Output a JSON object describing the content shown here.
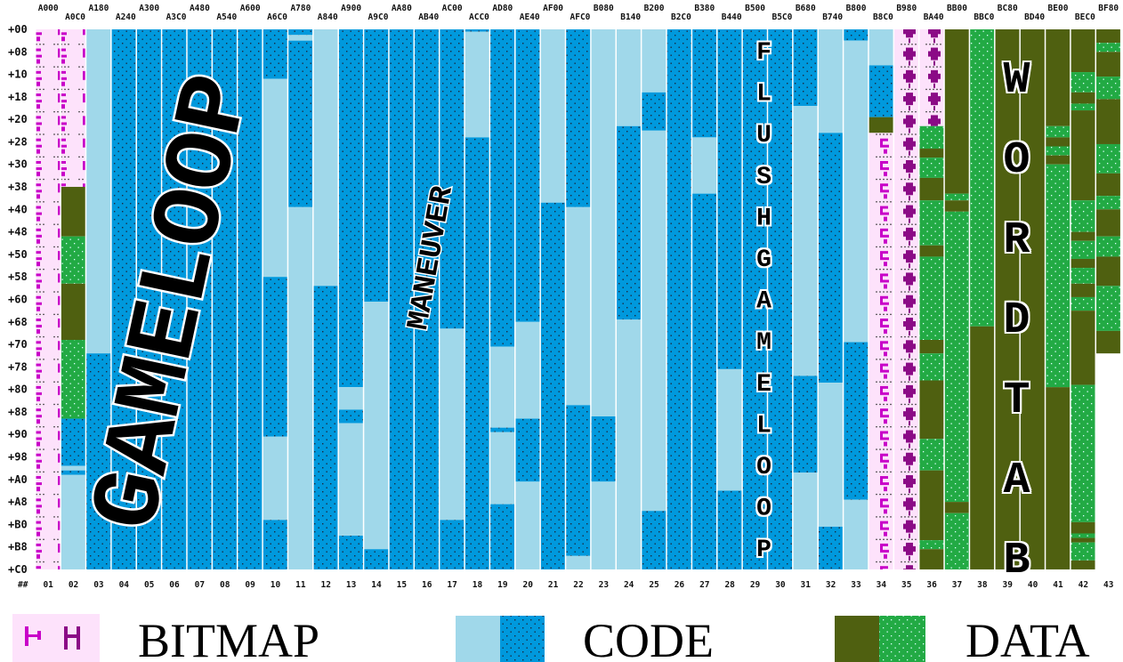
{
  "column_addresses": [
    "A000",
    "A0C0",
    "A180",
    "A240",
    "A300",
    "A3C0",
    "A480",
    "A540",
    "A600",
    "A6C0",
    "A780",
    "A840",
    "A900",
    "A9C0",
    "AA80",
    "AB40",
    "AC00",
    "ACC0",
    "AD80",
    "AE40",
    "AF00",
    "AFC0",
    "B080",
    "B140",
    "B200",
    "B2C0",
    "B380",
    "B440",
    "B500",
    "B5C0",
    "B680",
    "B740",
    "B800",
    "B8C0",
    "B980",
    "BA40",
    "BB00",
    "BBC0",
    "BC80",
    "BD40",
    "BE00",
    "BEC0",
    "BF80"
  ],
  "row_offsets": [
    "+00",
    "+08",
    "+10",
    "+18",
    "+20",
    "+28",
    "+30",
    "+38",
    "+40",
    "+48",
    "+50",
    "+58",
    "+60",
    "+68",
    "+70",
    "+78",
    "+80",
    "+88",
    "+90",
    "+98",
    "+A0",
    "+A8",
    "+B0",
    "+B8",
    "+C0"
  ],
  "corner": "##",
  "column_numbers": [
    "01",
    "02",
    "03",
    "04",
    "05",
    "06",
    "07",
    "08",
    "09",
    "10",
    "11",
    "12",
    "13",
    "14",
    "15",
    "16",
    "17",
    "18",
    "19",
    "20",
    "21",
    "22",
    "23",
    "24",
    "25",
    "26",
    "27",
    "28",
    "29",
    "30",
    "31",
    "32",
    "33",
    "34",
    "35",
    "36",
    "37",
    "38",
    "39",
    "40",
    "41",
    "42",
    "43"
  ],
  "region_labels": {
    "gameloop": "GAMELOOP",
    "maneuver": "MANEUVER",
    "flushgameloop": "FLUSHGAMELOOP",
    "wordtab": "WORDTAB"
  },
  "legend": [
    {
      "label": "BITMAP"
    },
    {
      "label": "CODE"
    },
    {
      "label": "DATA"
    }
  ]
}
